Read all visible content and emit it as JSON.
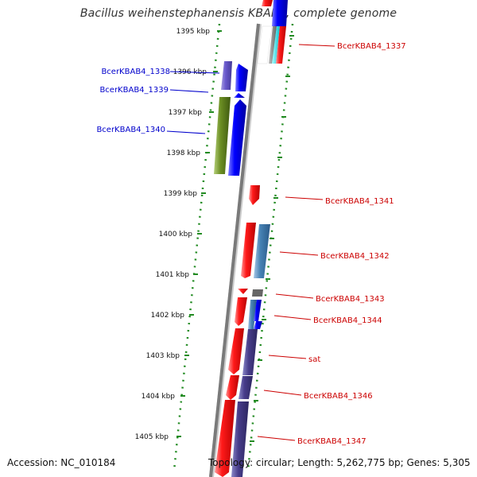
{
  "title": "Bacillus weihenstephanensis KBAB4, complete genome",
  "footer": {
    "accession": "Accession: NC_010184",
    "topology": "Topology: circular; Length: 5,262,775 bp; Genes: 5,305"
  },
  "kbp_ticks": [
    "1395 kbp",
    "1396 kbp",
    "1397 kbp",
    "1398 kbp",
    "1399 kbp",
    "1400 kbp",
    "1401 kbp",
    "1402 kbp",
    "1403 kbp",
    "1404 kbp",
    "1405 kbp"
  ],
  "left_genes": [
    "BcerKBAB4_1338",
    "BcerKBAB4_1339",
    "BcerKBAB4_1340"
  ],
  "right_genes": [
    "BcerKBAB4_1337",
    "BcerKBAB4_1341",
    "BcerKBAB4_1342",
    "BcerKBAB4_1343",
    "BcerKBAB4_1344",
    "sat",
    "BcerKBAB4_1346",
    "BcerKBAB4_1347"
  ],
  "colors": {
    "left_label": "#0000cc",
    "right_label": "#cc0000",
    "dotted_track": "#228b22",
    "backbone": "#808080"
  }
}
